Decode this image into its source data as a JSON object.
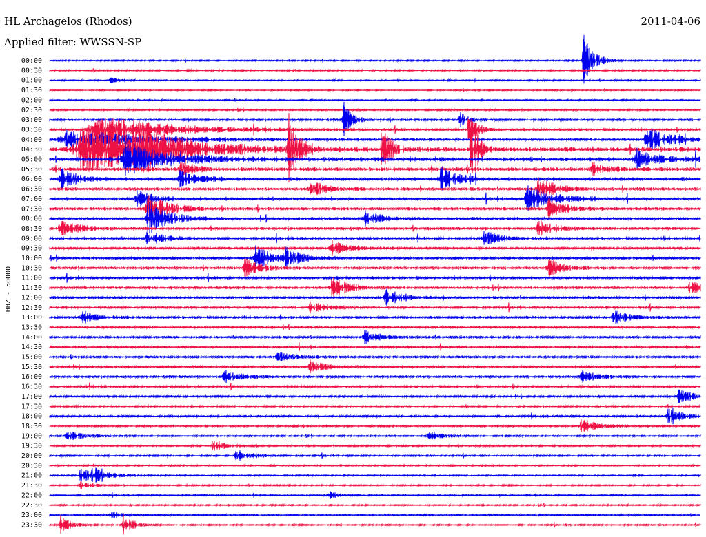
{
  "header": {
    "station": "HL Archagelos (Rhodos)",
    "date": "2011-04-06",
    "filter": "Applied filter: WWSSN-SP"
  },
  "chart_data": {
    "type": "line",
    "title": "HL Archagelos (Rhodos)",
    "ylabel": "HHZ - 50000",
    "series_colors": [
      "#0000ee",
      "#ee1144"
    ],
    "row_labels": [
      "00:00",
      "00:30",
      "01:00",
      "01:30",
      "02:00",
      "02:30",
      "03:00",
      "03:30",
      "04:00",
      "04:30",
      "05:00",
      "05:30",
      "06:00",
      "06:30",
      "07:00",
      "07:30",
      "08:00",
      "08:30",
      "09:00",
      "09:30",
      "10:00",
      "10:30",
      "11:00",
      "11:30",
      "12:00",
      "12:30",
      "13:00",
      "13:30",
      "14:00",
      "14:30",
      "15:00",
      "15:30",
      "16:00",
      "16:30",
      "17:00",
      "17:30",
      "18:00",
      "18:30",
      "19:00",
      "19:30",
      "20:00",
      "20:30",
      "21:00",
      "21:30",
      "22:00",
      "22:30",
      "23:00",
      "23:30"
    ],
    "row_noise": [
      0.8,
      0.8,
      0.7,
      0.6,
      0.7,
      0.9,
      1.2,
      1.4,
      1.6,
      3.0,
      2.5,
      2.2,
      2.0,
      1.8,
      1.8,
      1.8,
      1.7,
      1.6,
      1.5,
      1.5,
      1.5,
      1.5,
      1.5,
      1.5,
      1.5,
      1.4,
      1.4,
      1.3,
      1.3,
      1.3,
      1.3,
      1.3,
      1.3,
      1.2,
      1.1,
      1.0,
      1.0,
      0.9,
      0.9,
      0.9,
      0.9,
      0.8,
      0.8,
      0.8,
      0.8,
      0.8,
      0.8,
      0.8
    ],
    "events": [
      {
        "row": 0,
        "minute": 24.6,
        "amp": 42,
        "dur": 0.6
      },
      {
        "row": 2,
        "minute": 2.8,
        "amp": 6,
        "dur": 0.4
      },
      {
        "row": 6,
        "minute": 13.5,
        "amp": 30,
        "dur": 0.5
      },
      {
        "row": 6,
        "minute": 18.9,
        "amp": 12,
        "dur": 0.5
      },
      {
        "row": 7,
        "minute": 2.2,
        "amp": 22,
        "dur": 4.0
      },
      {
        "row": 7,
        "minute": 19.3,
        "amp": 22,
        "dur": 0.6
      },
      {
        "row": 8,
        "minute": 0.8,
        "amp": 14,
        "dur": 4.5
      },
      {
        "row": 8,
        "minute": 27.5,
        "amp": 18,
        "dur": 1.5
      },
      {
        "row": 9,
        "minute": 1.5,
        "amp": 40,
        "dur": 4.0
      },
      {
        "row": 9,
        "minute": 4.0,
        "amp": 28,
        "dur": 2.0
      },
      {
        "row": 9,
        "minute": 11.0,
        "amp": 70,
        "dur": 0.5
      },
      {
        "row": 9,
        "minute": 15.3,
        "amp": 35,
        "dur": 0.6
      },
      {
        "row": 9,
        "minute": 19.4,
        "amp": 80,
        "dur": 0.4
      },
      {
        "row": 10,
        "minute": 3.5,
        "amp": 24,
        "dur": 2.5
      },
      {
        "row": 10,
        "minute": 27.0,
        "amp": 16,
        "dur": 1.2
      },
      {
        "row": 11,
        "minute": 6.0,
        "amp": 10,
        "dur": 1.0
      },
      {
        "row": 11,
        "minute": 25.0,
        "amp": 10,
        "dur": 1.0
      },
      {
        "row": 12,
        "minute": 0.5,
        "amp": 16,
        "dur": 1.0
      },
      {
        "row": 12,
        "minute": 6.0,
        "amp": 14,
        "dur": 1.0
      },
      {
        "row": 12,
        "minute": 18.0,
        "amp": 20,
        "dur": 1.0
      },
      {
        "row": 13,
        "minute": 12.0,
        "amp": 14,
        "dur": 1.0
      },
      {
        "row": 13,
        "minute": 22.5,
        "amp": 18,
        "dur": 1.0
      },
      {
        "row": 14,
        "minute": 4.0,
        "amp": 14,
        "dur": 1.0
      },
      {
        "row": 14,
        "minute": 22.0,
        "amp": 20,
        "dur": 1.5
      },
      {
        "row": 15,
        "minute": 4.5,
        "amp": 20,
        "dur": 1.5
      },
      {
        "row": 15,
        "minute": 23.0,
        "amp": 16,
        "dur": 1.0
      },
      {
        "row": 16,
        "minute": 4.5,
        "amp": 28,
        "dur": 1.2
      },
      {
        "row": 16,
        "minute": 14.5,
        "amp": 12,
        "dur": 1.0
      },
      {
        "row": 17,
        "minute": 0.5,
        "amp": 14,
        "dur": 1.2
      },
      {
        "row": 17,
        "minute": 22.5,
        "amp": 14,
        "dur": 1.0
      },
      {
        "row": 18,
        "minute": 4.5,
        "amp": 12,
        "dur": 1.0
      },
      {
        "row": 18,
        "minute": 20.0,
        "amp": 12,
        "dur": 1.0
      },
      {
        "row": 19,
        "minute": 13.0,
        "amp": 12,
        "dur": 1.0
      },
      {
        "row": 20,
        "minute": 9.5,
        "amp": 18,
        "dur": 1.0
      },
      {
        "row": 20,
        "minute": 10.8,
        "amp": 16,
        "dur": 1.0
      },
      {
        "row": 21,
        "minute": 9.0,
        "amp": 14,
        "dur": 1.0
      },
      {
        "row": 21,
        "minute": 23.0,
        "amp": 14,
        "dur": 1.0
      },
      {
        "row": 23,
        "minute": 13.0,
        "amp": 18,
        "dur": 1.0
      },
      {
        "row": 23,
        "minute": 29.5,
        "amp": 10,
        "dur": 1.0
      },
      {
        "row": 24,
        "minute": 15.5,
        "amp": 14,
        "dur": 1.0
      },
      {
        "row": 25,
        "minute": 12.0,
        "amp": 10,
        "dur": 1.0
      },
      {
        "row": 26,
        "minute": 1.5,
        "amp": 10,
        "dur": 1.0
      },
      {
        "row": 26,
        "minute": 26.0,
        "amp": 10,
        "dur": 1.0
      },
      {
        "row": 28,
        "minute": 14.5,
        "amp": 10,
        "dur": 1.0
      },
      {
        "row": 30,
        "minute": 10.5,
        "amp": 8,
        "dur": 1.0
      },
      {
        "row": 31,
        "minute": 12.0,
        "amp": 10,
        "dur": 1.0
      },
      {
        "row": 32,
        "minute": 8.0,
        "amp": 10,
        "dur": 1.0
      },
      {
        "row": 32,
        "minute": 24.5,
        "amp": 12,
        "dur": 1.0
      },
      {
        "row": 34,
        "minute": 29.0,
        "amp": 12,
        "dur": 1.0
      },
      {
        "row": 36,
        "minute": 28.5,
        "amp": 12,
        "dur": 1.0
      },
      {
        "row": 37,
        "minute": 24.5,
        "amp": 12,
        "dur": 1.0
      },
      {
        "row": 38,
        "minute": 0.8,
        "amp": 8,
        "dur": 1.2
      },
      {
        "row": 38,
        "minute": 17.5,
        "amp": 8,
        "dur": 0.8
      },
      {
        "row": 39,
        "minute": 7.5,
        "amp": 10,
        "dur": 0.8
      },
      {
        "row": 40,
        "minute": 8.6,
        "amp": 8,
        "dur": 1.2
      },
      {
        "row": 42,
        "minute": 1.4,
        "amp": 12,
        "dur": 1.0
      },
      {
        "row": 42,
        "minute": 2.0,
        "amp": 8,
        "dur": 1.0
      },
      {
        "row": 43,
        "minute": 1.4,
        "amp": 8,
        "dur": 0.6
      },
      {
        "row": 44,
        "minute": 12.9,
        "amp": 6,
        "dur": 0.6
      },
      {
        "row": 46,
        "minute": 2.8,
        "amp": 6,
        "dur": 0.8
      },
      {
        "row": 47,
        "minute": 0.5,
        "amp": 14,
        "dur": 0.6
      },
      {
        "row": 47,
        "minute": 3.4,
        "amp": 16,
        "dur": 0.6
      }
    ]
  }
}
